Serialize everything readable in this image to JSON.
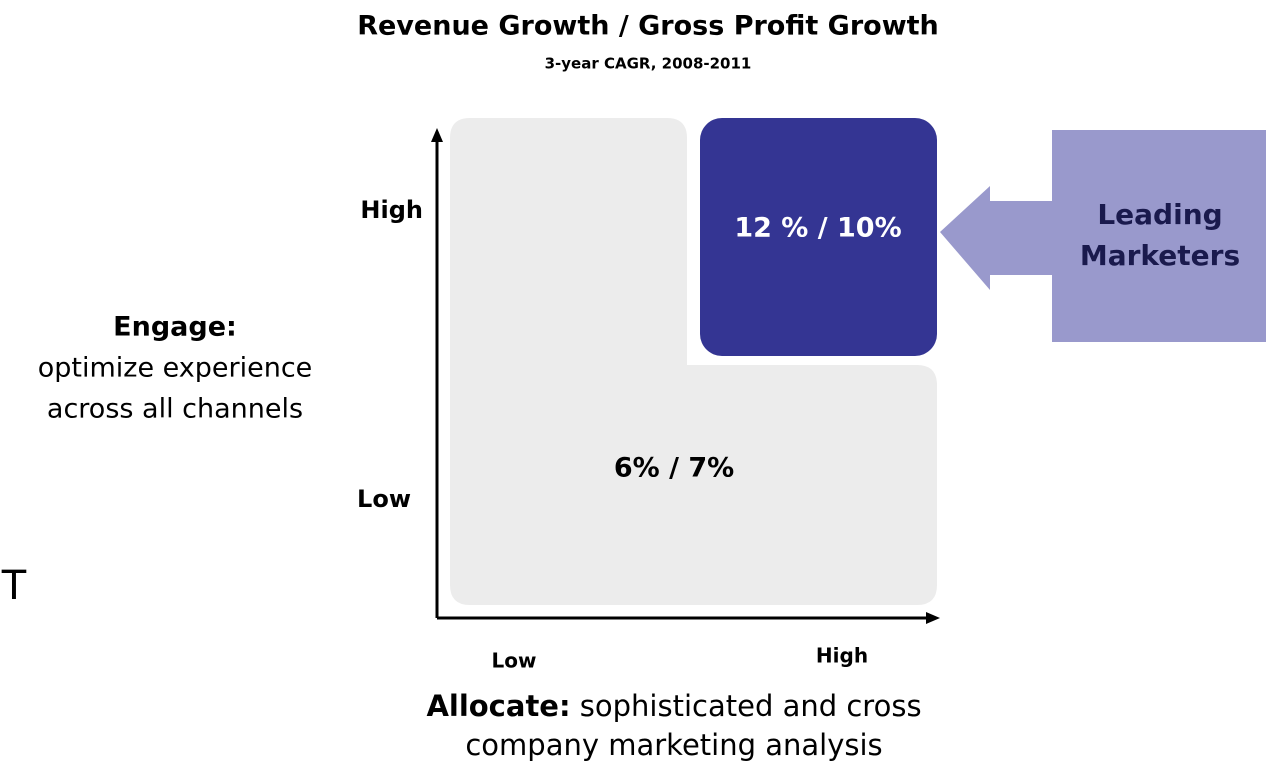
{
  "header": {
    "title": "Revenue Growth / Gross Profit Growth",
    "subtitle": "3-year CAGR, 2008-2011"
  },
  "y_axis": {
    "high": "High",
    "low": "Low",
    "label_bold": "Engage:",
    "label_lines": [
      "optimize experience",
      "across all channels"
    ]
  },
  "x_axis": {
    "low": "Low",
    "high": "High",
    "label_bold": "Allocate:",
    "label_lines": [
      "sophisticated and cross",
      "company marketing analysis"
    ]
  },
  "quadrants": {
    "leading": "12 % / 10%",
    "others": "6% / 7%"
  },
  "callout": {
    "lines": [
      "Leading",
      "Marketers"
    ]
  },
  "stray": "T"
}
